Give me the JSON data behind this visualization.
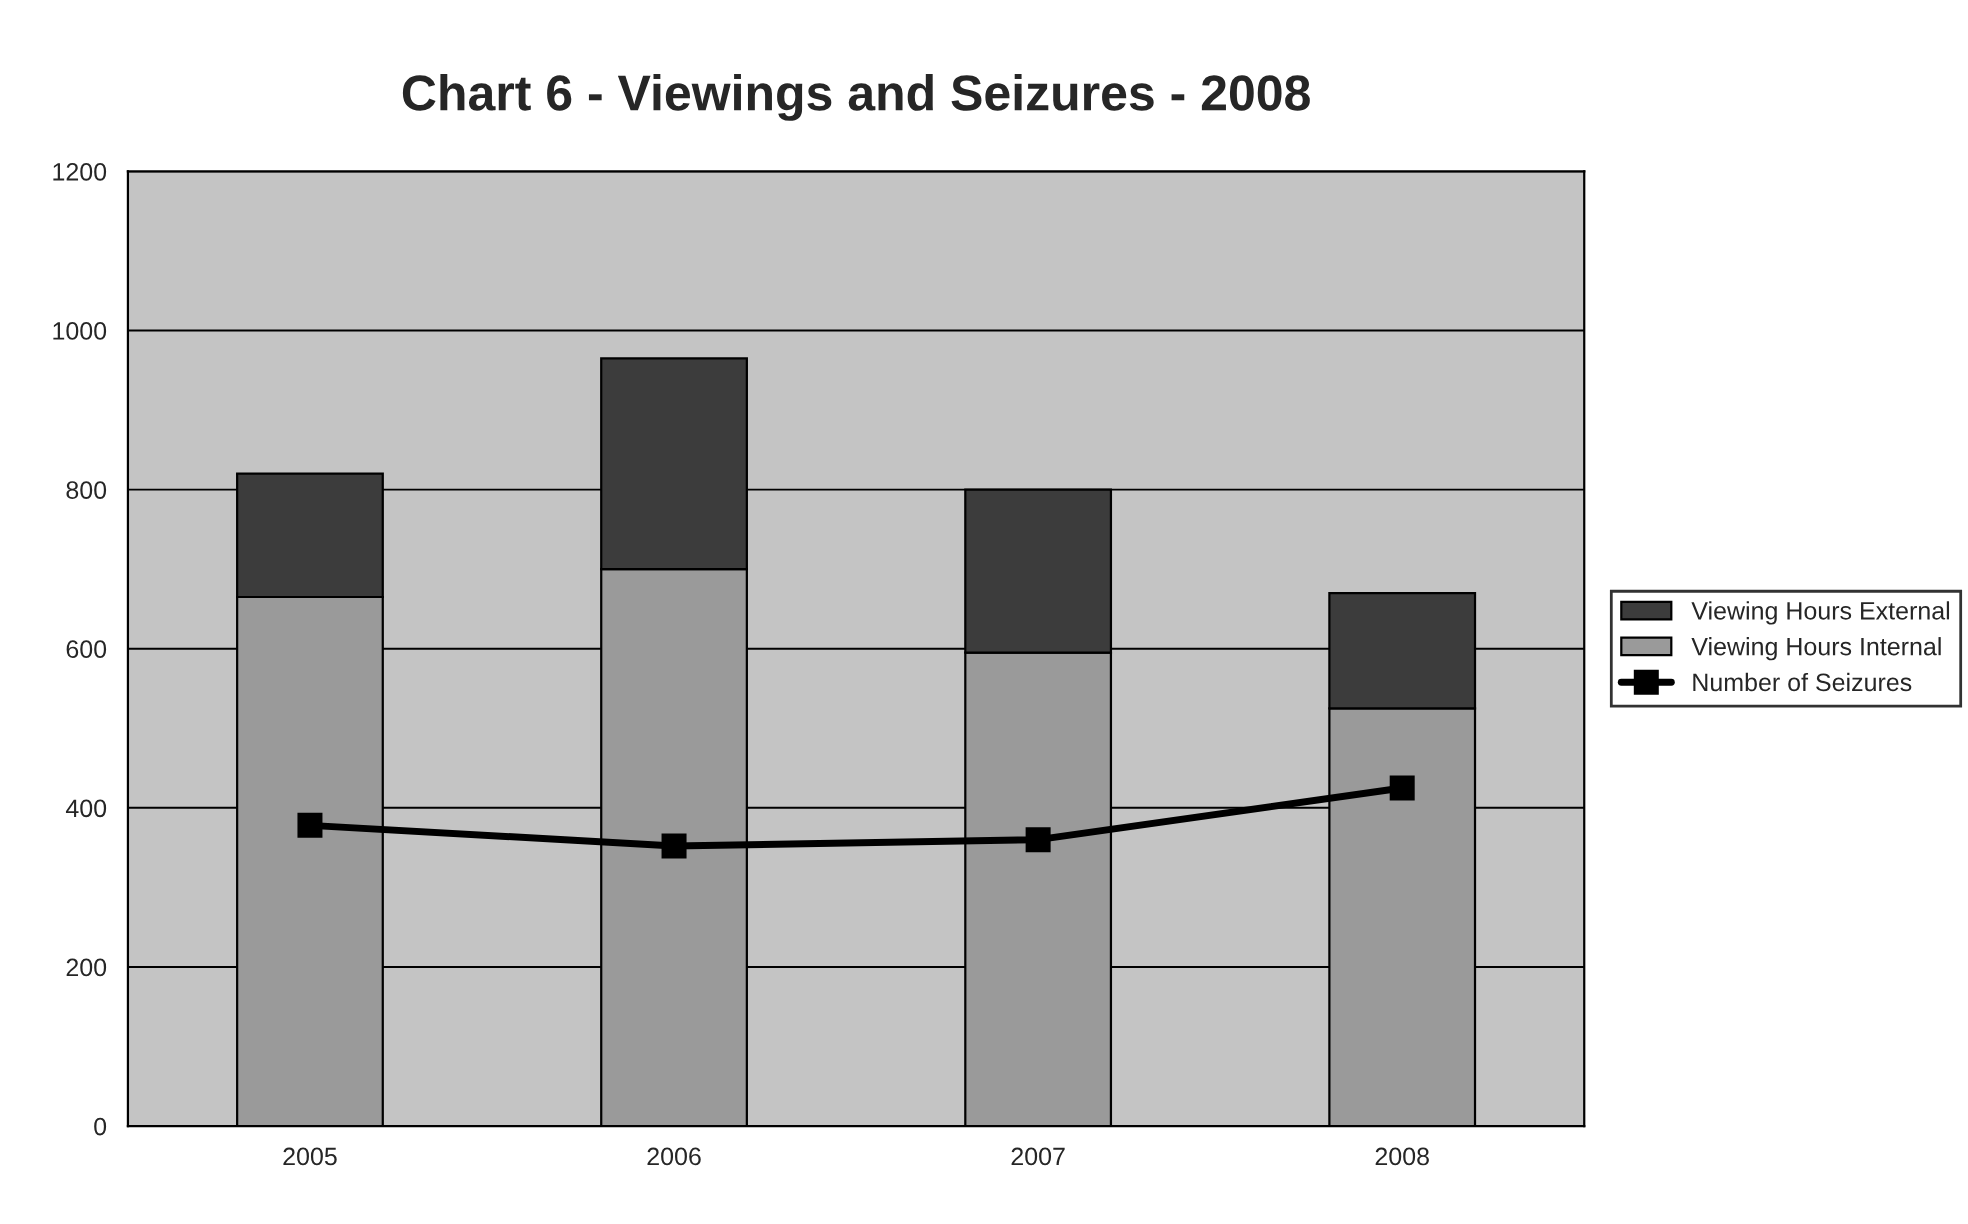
{
  "chart_data": {
    "type": "bar",
    "title": "Chart 6 - Viewings and Seizures - 2008",
    "categories": [
      "2005",
      "2006",
      "2007",
      "2008"
    ],
    "stacked": true,
    "series": [
      {
        "name": "Viewing Hours Internal",
        "color": "#9a9a9a",
        "values": [
          665,
          700,
          595,
          525
        ]
      },
      {
        "name": "Viewing Hours External",
        "color": "#3c3c3c",
        "values": [
          155,
          265,
          205,
          145
        ]
      },
      {
        "name": "Number of Seizures",
        "type": "line",
        "color": "#000000",
        "values": [
          378,
          352,
          360,
          425
        ],
        "marker": "square"
      }
    ],
    "ylim": [
      0,
      1200
    ],
    "yticks": [
      0,
      200,
      400,
      600,
      800,
      1000,
      1200
    ],
    "grid": "y",
    "legend": "right"
  }
}
